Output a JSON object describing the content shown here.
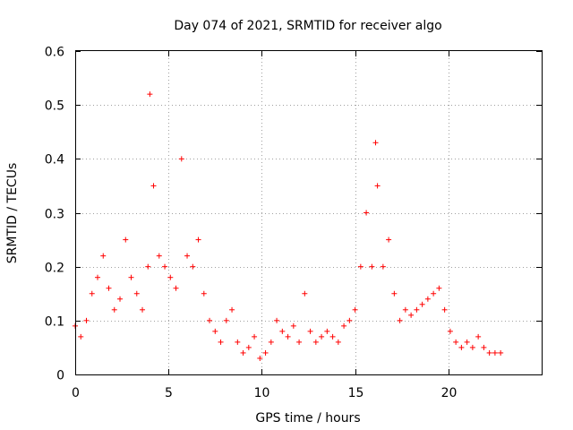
{
  "chart_data": {
    "type": "scatter",
    "title": "Day 074 of 2021, SRMTID for receiver algo",
    "xlabel": "GPS time / hours",
    "ylabel": "SRMTID / TECUs",
    "xlim": [
      0,
      25
    ],
    "ylim": [
      0,
      0.6
    ],
    "x_ticks": [
      0,
      5,
      10,
      15,
      20
    ],
    "x_tick_labels": [
      "0",
      "5",
      "10",
      "15",
      "20"
    ],
    "y_ticks": [
      0,
      0.1,
      0.2,
      0.3,
      0.4,
      0.5,
      0.6
    ],
    "y_tick_labels": [
      "0",
      "0.1",
      "0.2",
      "0.3",
      "0.4",
      "0.5",
      "0.6"
    ],
    "grid": true,
    "marker": "+",
    "color": "#ff0000",
    "data_range_x": [
      0,
      22.9
    ],
    "series": [
      {
        "name": "SRMTID",
        "x": [
          0.0,
          0.3,
          0.6,
          0.9,
          1.2,
          1.5,
          1.8,
          2.1,
          2.4,
          2.7,
          3.0,
          3.3,
          3.6,
          3.9,
          4.0,
          4.2,
          4.5,
          4.8,
          5.1,
          5.4,
          5.7,
          6.0,
          6.3,
          6.6,
          6.9,
          7.2,
          7.5,
          7.8,
          8.1,
          8.4,
          8.7,
          9.0,
          9.3,
          9.6,
          9.9,
          10.2,
          10.5,
          10.8,
          11.1,
          11.4,
          11.7,
          12.0,
          12.3,
          12.6,
          12.9,
          13.2,
          13.5,
          13.8,
          14.1,
          14.4,
          14.7,
          15.0,
          15.3,
          15.6,
          15.9,
          16.1,
          16.2,
          16.5,
          16.8,
          17.1,
          17.4,
          17.7,
          18.0,
          18.3,
          18.6,
          18.9,
          19.2,
          19.5,
          19.8,
          20.1,
          20.4,
          20.7,
          21.0,
          21.3,
          21.6,
          21.9,
          22.2,
          22.5,
          22.8
        ],
        "y": [
          0.09,
          0.07,
          0.1,
          0.15,
          0.18,
          0.22,
          0.16,
          0.12,
          0.14,
          0.25,
          0.18,
          0.15,
          0.12,
          0.2,
          0.52,
          0.35,
          0.22,
          0.2,
          0.18,
          0.16,
          0.4,
          0.22,
          0.2,
          0.25,
          0.15,
          0.1,
          0.08,
          0.06,
          0.1,
          0.12,
          0.06,
          0.04,
          0.05,
          0.07,
          0.03,
          0.04,
          0.06,
          0.1,
          0.08,
          0.07,
          0.09,
          0.06,
          0.15,
          0.08,
          0.06,
          0.07,
          0.08,
          0.07,
          0.06,
          0.09,
          0.1,
          0.12,
          0.2,
          0.3,
          0.2,
          0.43,
          0.35,
          0.2,
          0.25,
          0.15,
          0.1,
          0.12,
          0.11,
          0.12,
          0.13,
          0.14,
          0.15,
          0.16,
          0.12,
          0.08,
          0.06,
          0.05,
          0.06,
          0.05,
          0.07,
          0.05,
          0.04,
          0.04,
          0.04
        ]
      }
    ]
  }
}
